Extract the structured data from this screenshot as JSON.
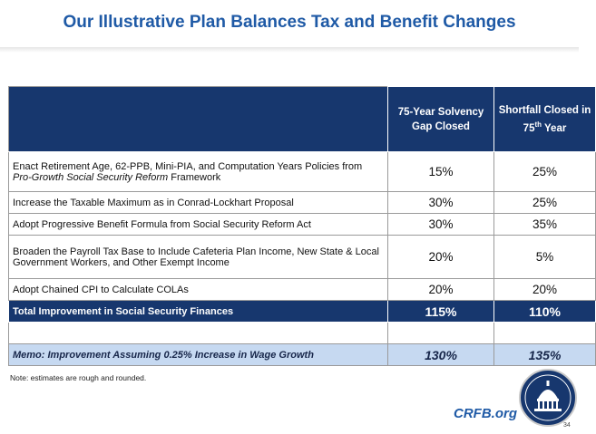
{
  "title": "Our Illustrative Plan Balances Tax and Benefit Changes",
  "table": {
    "header": {
      "col1": "75-Year Solvency Gap Closed",
      "col2": {
        "before": "Shortfall Closed in 75",
        "sup": "th",
        "after": " Year"
      }
    },
    "rows": [
      {
        "label": [
          {
            "text": "Enact Retirement Age, 62-PPB, Mini-PIA, and Computation Years Policies from "
          },
          {
            "text": "Pro-Growth Social Security Reform",
            "italic": true
          },
          {
            "text": " Framework"
          }
        ],
        "values": [
          "15%",
          "25%"
        ]
      },
      {
        "label": [
          {
            "text": "Increase the Taxable Maximum as in Conrad-Lockhart Proposal"
          }
        ],
        "values": [
          "30%",
          "25%"
        ]
      },
      {
        "label": [
          {
            "text": "Adopt Progressive Benefit Formula from Social Security Reform Act"
          }
        ],
        "values": [
          "30%",
          "35%"
        ]
      },
      {
        "label": [
          {
            "text": "Broaden the Payroll Tax Base to Include Cafeteria Plan Income, New State & Local Government Workers, and Other Exempt Income"
          }
        ],
        "values": [
          "20%",
          "5%"
        ]
      },
      {
        "label": [
          {
            "text": "Adopt Chained CPI to Calculate COLAs"
          }
        ],
        "values": [
          "20%",
          "20%"
        ]
      }
    ],
    "total": {
      "label": "Total Improvement in Social Security Finances",
      "values": [
        "115%",
        "110%"
      ]
    },
    "memo": {
      "label": "Memo: Improvement Assuming 0.25% Increase in Wage Growth",
      "values": [
        "130%",
        "135%"
      ]
    }
  },
  "note": "Note: estimates are rough and rounded.",
  "site": "CRFB.org",
  "page": "34"
}
